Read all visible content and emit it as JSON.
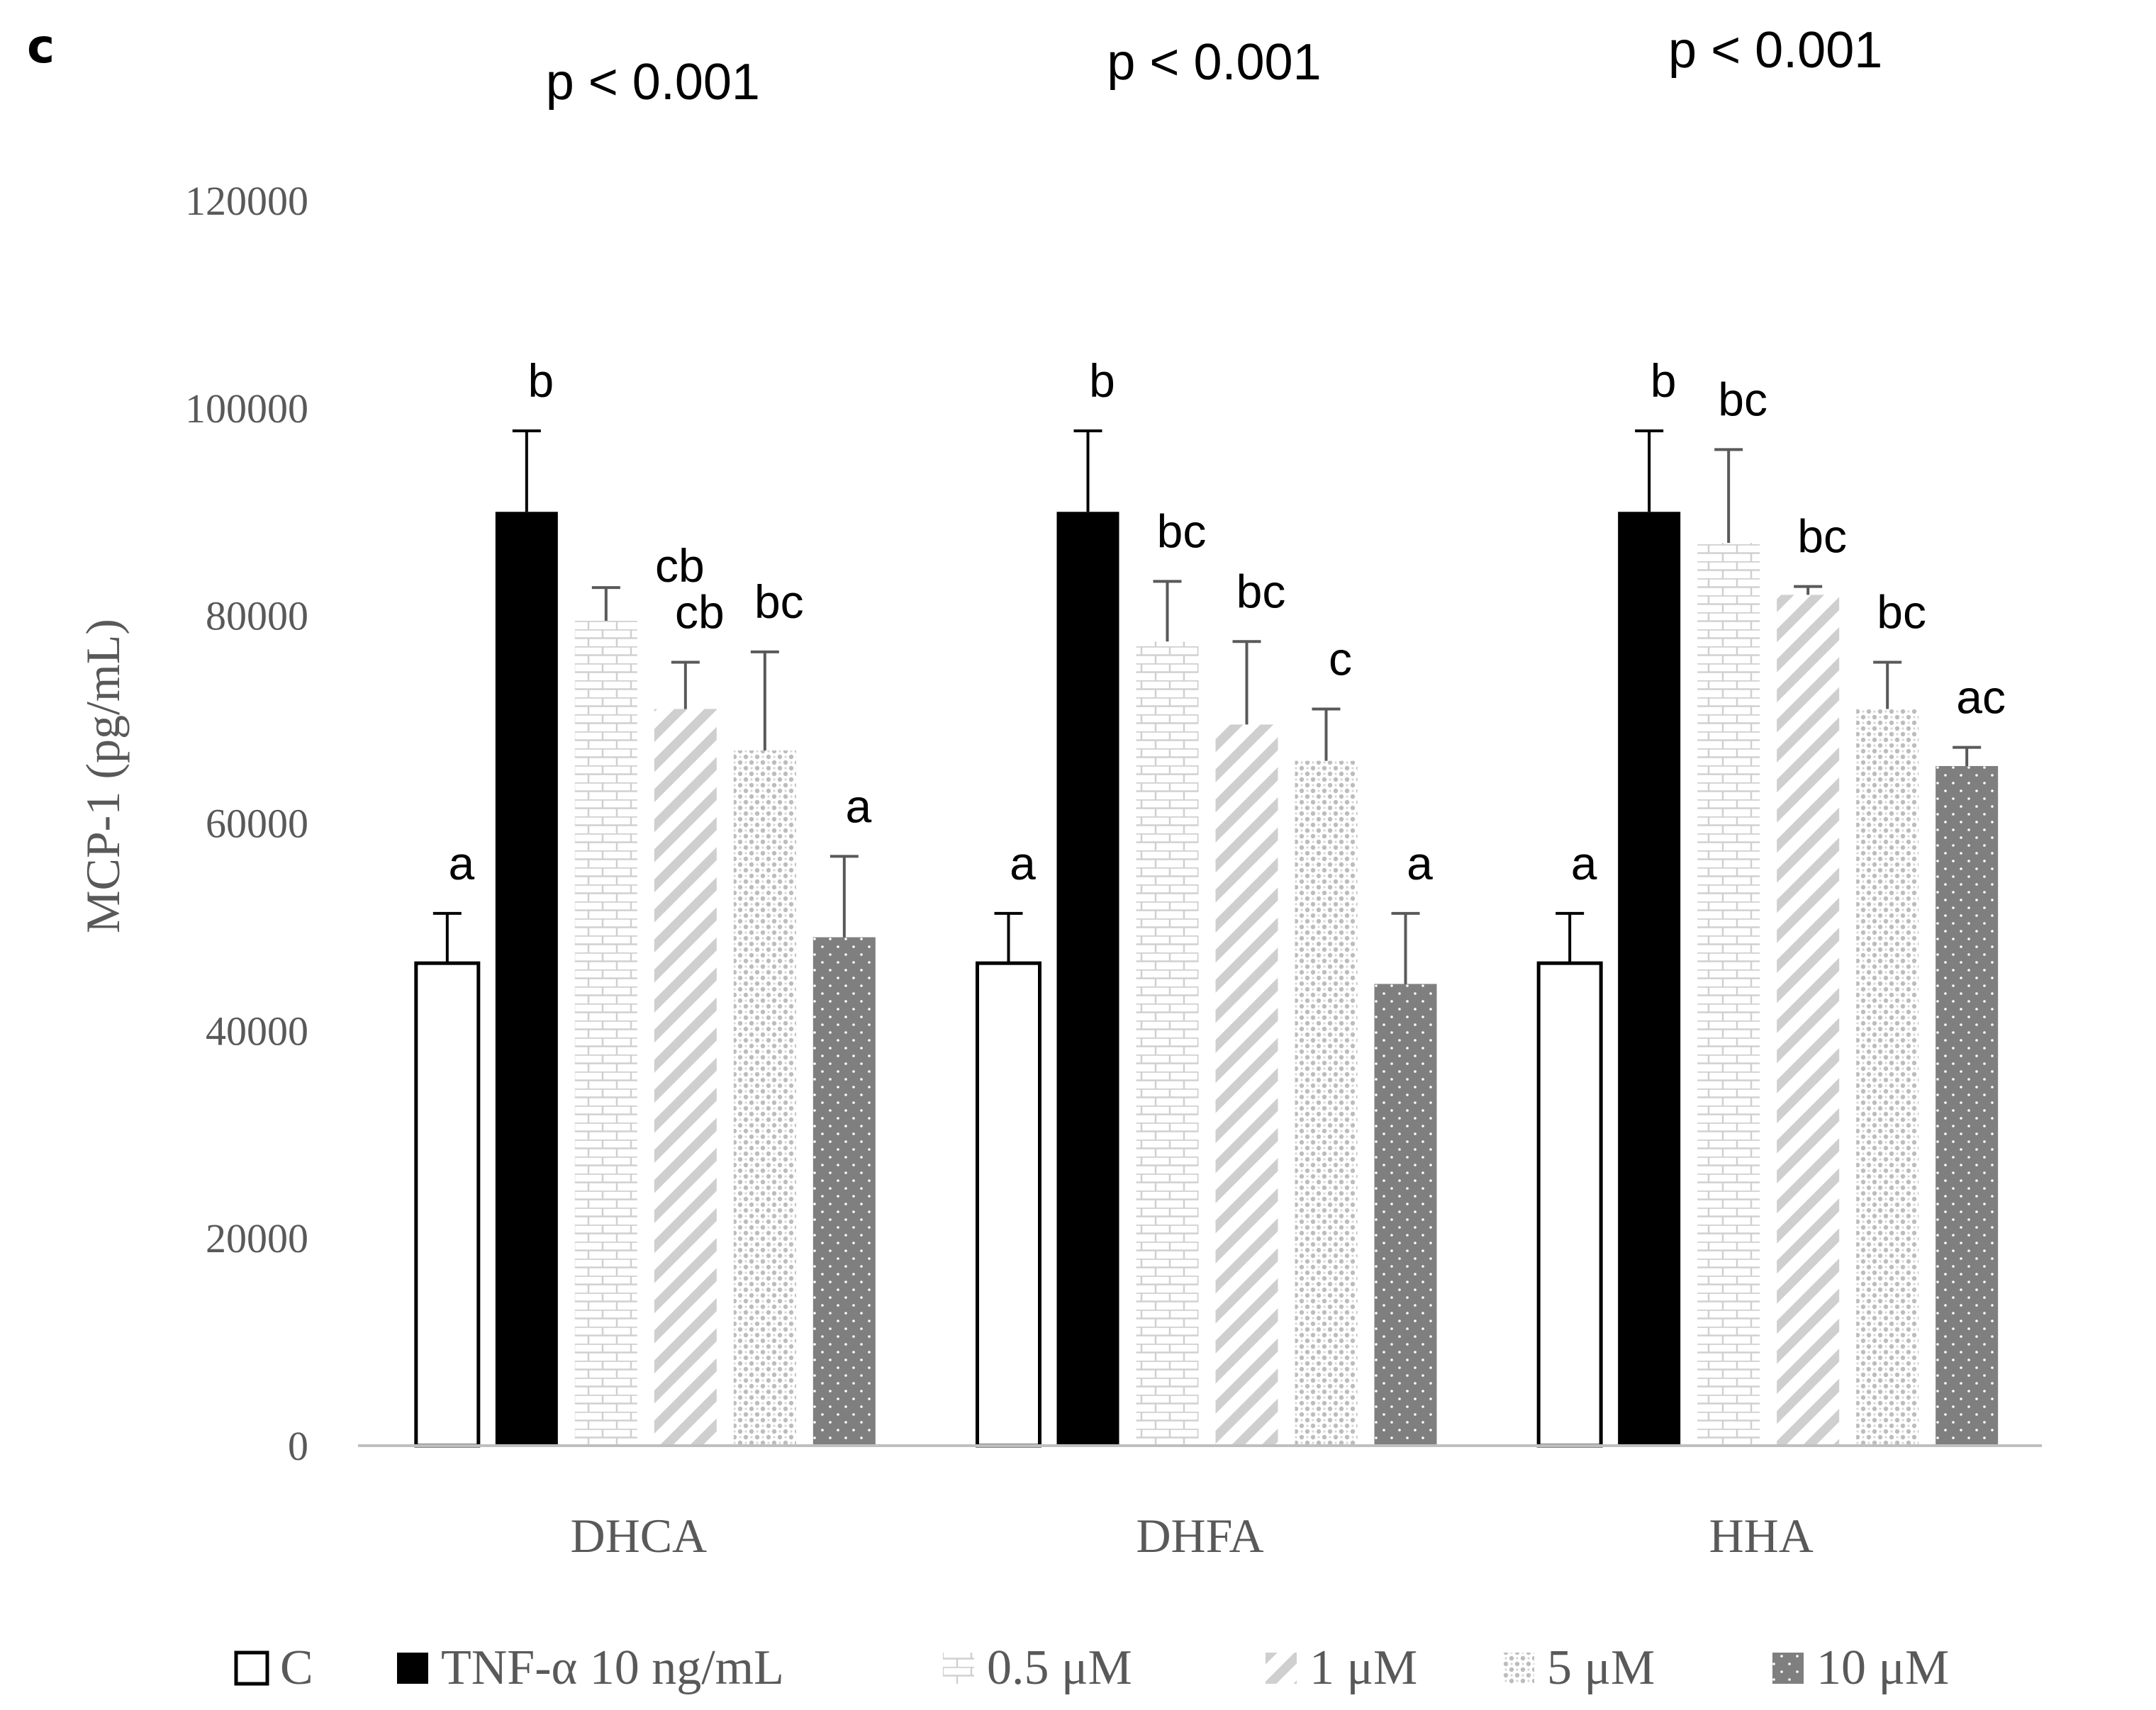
{
  "panel_label": "c",
  "colors": {
    "axis": "#bfbfbf",
    "text": "#595959",
    "black": "#000000",
    "pattern_light": "#d0d0d0",
    "dots_bg": "#7f7f7f"
  },
  "chart_data": {
    "type": "bar",
    "title": "",
    "ylabel": "MCP-1 (pg/mL)",
    "xlabel": "",
    "ylim": [
      0,
      120000
    ],
    "yticks": [
      0,
      20000,
      40000,
      60000,
      80000,
      100000,
      120000
    ],
    "categories": [
      "DHCA",
      "DHFA",
      "HHA"
    ],
    "p_values": [
      "p < 0.001",
      "p < 0.001",
      "p < 0.001"
    ],
    "series": [
      {
        "name": "C",
        "pattern": "white",
        "values": [
          46500,
          46500,
          46500
        ],
        "errors": [
          4800,
          4800,
          4800
        ],
        "labels": [
          "a",
          "a",
          "a"
        ]
      },
      {
        "name": "TNF-α 10 ng/mL",
        "pattern": "black",
        "values": [
          90000,
          90000,
          90000
        ],
        "errors": [
          7800,
          7800,
          7800
        ],
        "labels": [
          "b",
          "b",
          "b"
        ]
      },
      {
        "name": "0.5 μM",
        "pattern": "brick",
        "values": [
          79500,
          77500,
          87000
        ],
        "errors": [
          3200,
          5800,
          9000
        ],
        "labels": [
          "cb",
          "bc",
          "bc"
        ]
      },
      {
        "name": "1 μM",
        "pattern": "diagonal",
        "values": [
          71000,
          69500,
          82000
        ],
        "errors": [
          4500,
          8000,
          800
        ],
        "labels": [
          "cb",
          "bc",
          "bc"
        ]
      },
      {
        "name": "5 μM",
        "pattern": "sparkle",
        "values": [
          67000,
          66000,
          71000
        ],
        "errors": [
          9500,
          5000,
          4500
        ],
        "labels": [
          "bc",
          "c",
          "bc"
        ]
      },
      {
        "name": "10 μM",
        "pattern": "dots",
        "values": [
          49000,
          44500,
          65500
        ],
        "errors": [
          7800,
          6800,
          1800
        ],
        "labels": [
          "a",
          "a",
          "ac"
        ]
      }
    ],
    "legend_position": "bottom"
  }
}
